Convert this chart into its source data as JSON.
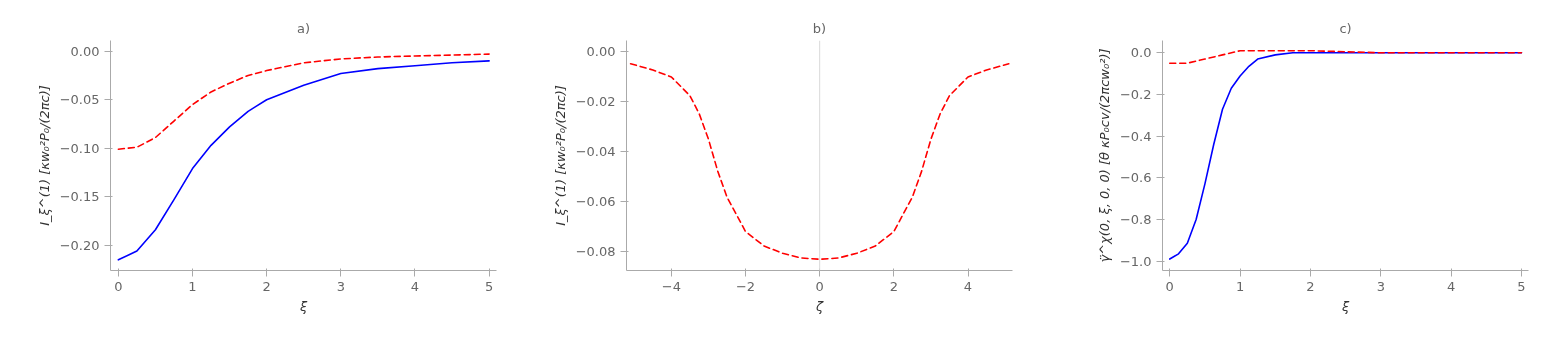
{
  "chart_data": [
    {
      "type": "line",
      "title": "a)",
      "xlabel": "ξ",
      "ylabel": "I_ξ^(1) [κw₀²P₀/(2πc)]",
      "xlim": [
        -0.106,
        5.1
      ],
      "ylim": [
        -0.226,
        0.011
      ],
      "xticks": [
        0,
        1,
        2,
        3,
        4,
        5
      ],
      "yticks": [
        {
          "value": 0,
          "label": "0.00"
        },
        {
          "value": -0.05,
          "label": "−0.05"
        },
        {
          "value": -0.1,
          "label": "−0.10"
        },
        {
          "value": -0.15,
          "label": "−0.15"
        },
        {
          "value": -0.2,
          "label": "−0.20"
        }
      ],
      "grid": false,
      "series": [
        {
          "color": "#0000ff",
          "line_style": "solid",
          "x": [
            0,
            0.25,
            0.5,
            0.75,
            1,
            1.25,
            1.5,
            1.75,
            2,
            2.5,
            3,
            3.5,
            4,
            4.5,
            5
          ],
          "values": [
            -0.215,
            -0.206,
            -0.184,
            -0.153,
            -0.121,
            -0.097,
            -0.078,
            -0.062,
            -0.05,
            -0.035,
            -0.023,
            -0.018,
            -0.015,
            -0.012,
            -0.01
          ]
        },
        {
          "color": "#ff0000",
          "line_style": "dashed",
          "x": [
            0,
            0.25,
            0.5,
            0.75,
            1,
            1.25,
            1.5,
            1.75,
            2,
            2.5,
            3,
            3.5,
            4,
            4.5,
            5
          ],
          "values": [
            -0.101,
            -0.099,
            -0.089,
            -0.072,
            -0.055,
            -0.042,
            -0.033,
            -0.025,
            -0.02,
            -0.012,
            -0.008,
            -0.006,
            -0.005,
            -0.004,
            -0.003
          ]
        }
      ]
    },
    {
      "type": "line",
      "title": "b)",
      "xlabel": "ζ",
      "ylabel": "I_ξ^(1) [κw₀²P₀/(2πc)]",
      "xlim": [
        -5.21,
        5.2
      ],
      "ylim": [
        -0.0878,
        0.0043
      ],
      "xticks": [
        {
          "value": -4,
          "label": "−4"
        },
        {
          "value": -2,
          "label": "−2"
        },
        0,
        2,
        4
      ],
      "yticks": [
        {
          "value": 0,
          "label": "0.00"
        },
        {
          "value": -0.02,
          "label": "−0.02"
        },
        {
          "value": -0.04,
          "label": "−0.04"
        },
        {
          "value": -0.06,
          "label": "−0.06"
        },
        {
          "value": -0.08,
          "label": "−0.08"
        }
      ],
      "grid": false,
      "ref_lines": [
        {
          "axis": "x",
          "value": 0,
          "color": "#d9d9d9"
        }
      ],
      "series": [
        {
          "color": "#ff0000",
          "line_style": "dashed",
          "x": [
            -5.1,
            -4.5,
            -4,
            -3.5,
            -3.25,
            -3,
            -2.75,
            -2.5,
            -2,
            -1.5,
            -1,
            -0.5,
            0,
            0.5,
            1,
            1.5,
            2,
            2.5,
            2.75,
            3,
            3.25,
            3.5,
            4,
            4.5,
            5.1
          ],
          "values": [
            -0.005,
            -0.0075,
            -0.0103,
            -0.0178,
            -0.025,
            -0.0352,
            -0.048,
            -0.0584,
            -0.0722,
            -0.078,
            -0.0809,
            -0.0828,
            -0.0833,
            -0.0828,
            -0.0809,
            -0.078,
            -0.0722,
            -0.0584,
            -0.048,
            -0.0352,
            -0.025,
            -0.0178,
            -0.0103,
            -0.0075,
            -0.005
          ]
        }
      ]
    },
    {
      "type": "line",
      "title": "c)",
      "xlabel": "ξ",
      "ylabel": "γ̈^χ(0, ξ, 0, 0) [θ κP₀cv/(2πcw₀²)]",
      "xlim": [
        -0.103,
        5.1
      ],
      "ylim": [
        -1.045,
        0.059
      ],
      "xticks": [
        0,
        1,
        2,
        3,
        4,
        5
      ],
      "yticks": [
        {
          "value": 0,
          "label": "0.0"
        },
        {
          "value": -0.2,
          "label": "−0.2"
        },
        {
          "value": -0.4,
          "label": "−0.4"
        },
        {
          "value": -0.6,
          "label": "−0.6"
        },
        {
          "value": -0.8,
          "label": "−0.8"
        },
        {
          "value": -1,
          "label": "−1.0"
        }
      ],
      "grid": false,
      "series": [
        {
          "color": "#0000ff",
          "line_style": "solid",
          "x": [
            0,
            0.125,
            0.25,
            0.375,
            0.5,
            0.625,
            0.75,
            0.875,
            1,
            1.125,
            1.25,
            1.5,
            1.75,
            2,
            3,
            4,
            5
          ],
          "values": [
            -0.99,
            -0.965,
            -0.914,
            -0.8,
            -0.629,
            -0.44,
            -0.271,
            -0.17,
            -0.111,
            -0.065,
            -0.03,
            -0.01,
            0,
            0,
            0,
            0,
            0
          ]
        },
        {
          "color": "#ff0000",
          "line_style": "dashed",
          "x": [
            0,
            0.25,
            0.5,
            0.75,
            1,
            1.5,
            2,
            3,
            4,
            5
          ],
          "values": [
            -0.05,
            -0.05,
            -0.03,
            -0.01,
            0.01,
            0.01,
            0.01,
            0,
            0,
            0
          ]
        }
      ]
    }
  ]
}
